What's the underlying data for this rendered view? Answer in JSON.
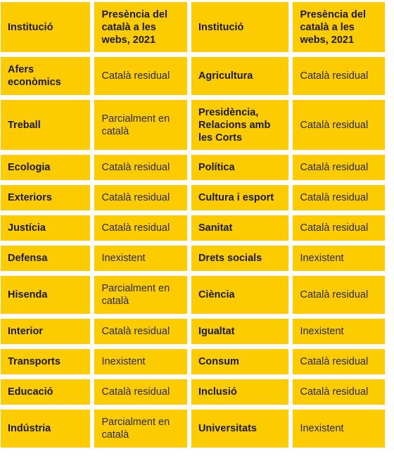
{
  "headers": {
    "institution": "Institució",
    "presence": "Presència del català a les webs, 2021"
  },
  "rows": [
    {
      "left_name": "Afers econòmics",
      "left_value": "Català residual",
      "right_name": "Agricultura",
      "right_value": "Català residual"
    },
    {
      "left_name": "Treball",
      "left_value": "Parcialment en català",
      "right_name": "Presidència, Relacions amb les Corts",
      "right_value": "Català residual"
    },
    {
      "left_name": "Ecologia",
      "left_value": "Català residual",
      "right_name": "Política",
      "right_value": "Català residual"
    },
    {
      "left_name": "Exteriors",
      "left_value": "Català residual",
      "right_name": "Cultura i esport",
      "right_value": "Català residual"
    },
    {
      "left_name": "Justícia",
      "left_value": "Català residual",
      "right_name": "Sanitat",
      "right_value": "Català residual"
    },
    {
      "left_name": "Defensa",
      "left_value": "Inexistent",
      "right_name": "Drets socials",
      "right_value": "Inexistent"
    },
    {
      "left_name": "Hisenda",
      "left_value": "Parcialment en català",
      "right_name": "Ciència",
      "right_value": "Català residual"
    },
    {
      "left_name": "Interior",
      "left_value": "Català residual",
      "right_name": "Igualtat",
      "right_value": "Inexistent"
    },
    {
      "left_name": "Transports",
      "left_value": "Inexistent",
      "right_name": "Consum",
      "right_value": "Català residual"
    },
    {
      "left_name": "Educació",
      "left_value": "Català residual",
      "right_name": "Inclusió",
      "right_value": "Català residual"
    },
    {
      "left_name": "Indústria",
      "left_value": "Parcialment en català",
      "right_name": "Universitats",
      "right_value": "Inexistent"
    }
  ],
  "colors": {
    "cell_background": "#fccb00",
    "text": "#1a1a1a"
  }
}
